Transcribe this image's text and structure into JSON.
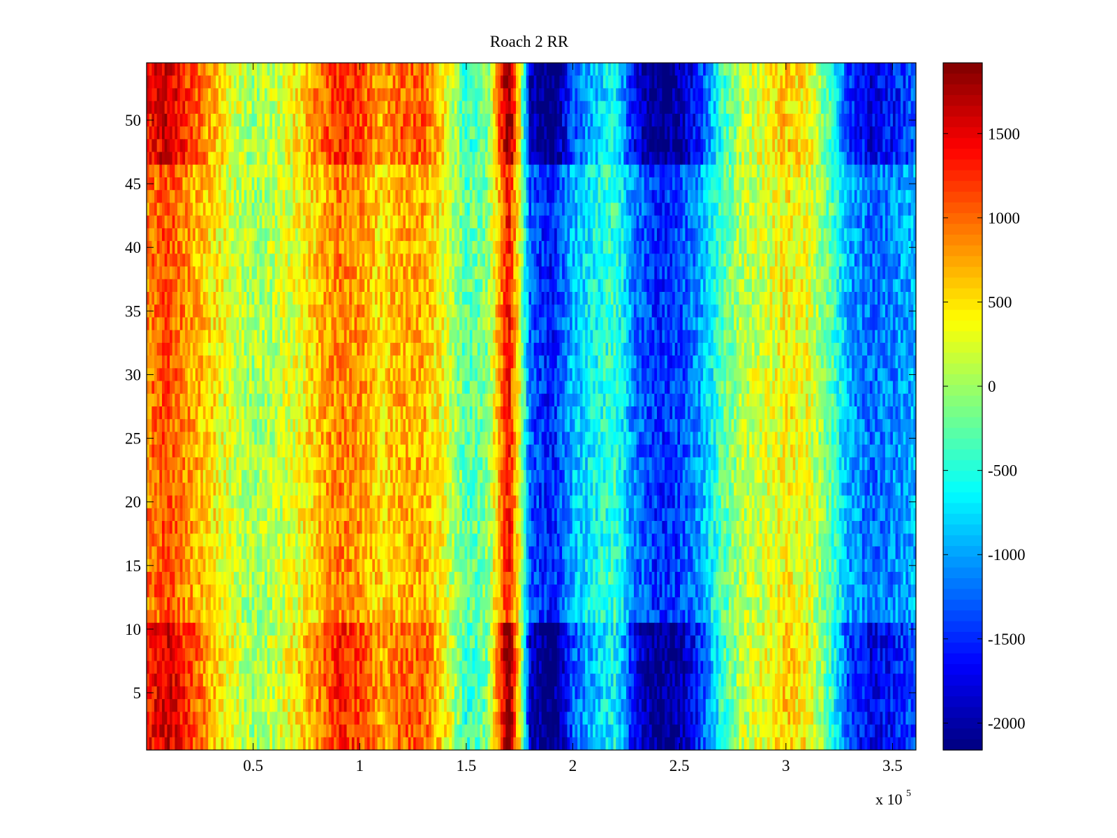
{
  "chart_data": {
    "type": "heatmap",
    "title": "Roach 2 RR",
    "xlabel": "",
    "ylabel": "",
    "x_exponent_label": "x 10",
    "x_exponent_power": "5",
    "xlim": [
      0,
      3.61
    ],
    "ylim": [
      0.5,
      54.5
    ],
    "rows": 54,
    "x_ticks": [
      0.5,
      1,
      1.5,
      2,
      2.5,
      3,
      3.5
    ],
    "x_tick_labels": [
      "0.5",
      "1",
      "1.5",
      "2",
      "2.5",
      "3",
      "3.5"
    ],
    "y_ticks": [
      5,
      10,
      15,
      20,
      25,
      30,
      35,
      40,
      45,
      50
    ],
    "y_tick_labels": [
      "5",
      "10",
      "15",
      "20",
      "25",
      "30",
      "35",
      "40",
      "45",
      "50"
    ],
    "colorbar": {
      "colormap": "jet",
      "clim": [
        -2160,
        1920
      ],
      "ticks": [
        1500,
        1000,
        500,
        0,
        -500,
        -1000,
        -1500,
        -2000
      ],
      "tick_labels": [
        "1500",
        "1000",
        "500",
        "0",
        "-500",
        "-1000",
        "-1500",
        "-2000"
      ]
    },
    "column_profile_x": [
      0,
      0.1,
      0.2,
      0.3,
      0.4,
      0.5,
      0.6,
      0.7,
      0.8,
      0.9,
      1.0,
      1.1,
      1.2,
      1.3,
      1.4,
      1.5,
      1.6,
      1.7,
      1.75,
      1.8,
      1.9,
      2.0,
      2.1,
      2.2,
      2.3,
      2.4,
      2.5,
      2.6,
      2.7,
      2.8,
      2.9,
      3.0,
      3.1,
      3.2,
      3.3,
      3.4,
      3.5,
      3.61
    ],
    "column_profile_values": [
      900,
      1100,
      800,
      500,
      200,
      0,
      100,
      300,
      600,
      900,
      800,
      500,
      700,
      700,
      300,
      -300,
      -100,
      1400,
      300,
      -1300,
      -1600,
      -900,
      -600,
      -400,
      -1200,
      -1500,
      -1400,
      -1000,
      -300,
      100,
      200,
      400,
      300,
      -200,
      -1000,
      -1200,
      -1100,
      -900
    ]
  }
}
